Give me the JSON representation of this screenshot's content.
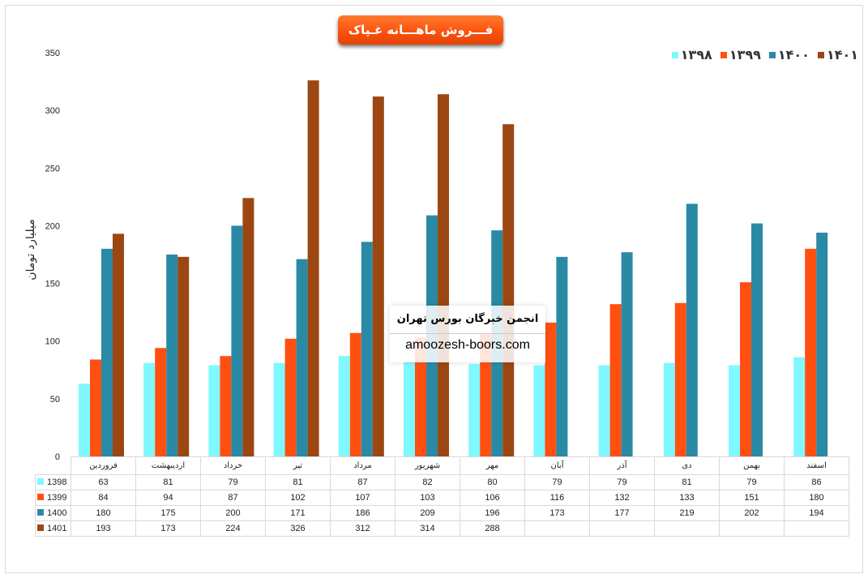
{
  "chart_data": {
    "type": "bar",
    "title": "فـــروش ماهـــانه غـپاک",
    "ylabel": "میلیارد تومان",
    "ylim": [
      0,
      350
    ],
    "yticks": [
      0,
      50,
      100,
      150,
      200,
      250,
      300,
      350
    ],
    "grid": false,
    "legend": "top-right",
    "legend_labels": [
      "۱۳۹۸",
      "۱۳۹۹",
      "۱۴۰۰",
      "۱۴۰۱"
    ],
    "categories": [
      "فروردین",
      "اردیبهشت",
      "خرداد",
      "تیر",
      "مرداد",
      "شهریور",
      "مهر",
      "آبان",
      "آذر",
      "دی",
      "بهمن",
      "اسفند"
    ],
    "series": [
      {
        "name": "1398",
        "color": "#7ff8ff",
        "values": [
          63,
          81,
          79,
          81,
          87,
          82,
          80,
          79,
          79,
          81,
          79,
          86
        ]
      },
      {
        "name": "1399",
        "color": "#ff5012",
        "values": [
          84,
          94,
          87,
          102,
          107,
          103,
          106,
          116,
          132,
          133,
          151,
          180
        ]
      },
      {
        "name": "1400",
        "color": "#2a8aa6",
        "values": [
          180,
          175,
          200,
          171,
          186,
          209,
          196,
          173,
          177,
          219,
          202,
          194
        ]
      },
      {
        "name": "1401",
        "color": "#9c4712",
        "values": [
          193,
          173,
          224,
          326,
          312,
          314,
          288,
          null,
          null,
          null,
          null,
          null
        ]
      }
    ]
  },
  "watermark": {
    "line1": "انجمن خبرگان بورس تهران",
    "line2": "amoozesh-boors.com"
  }
}
